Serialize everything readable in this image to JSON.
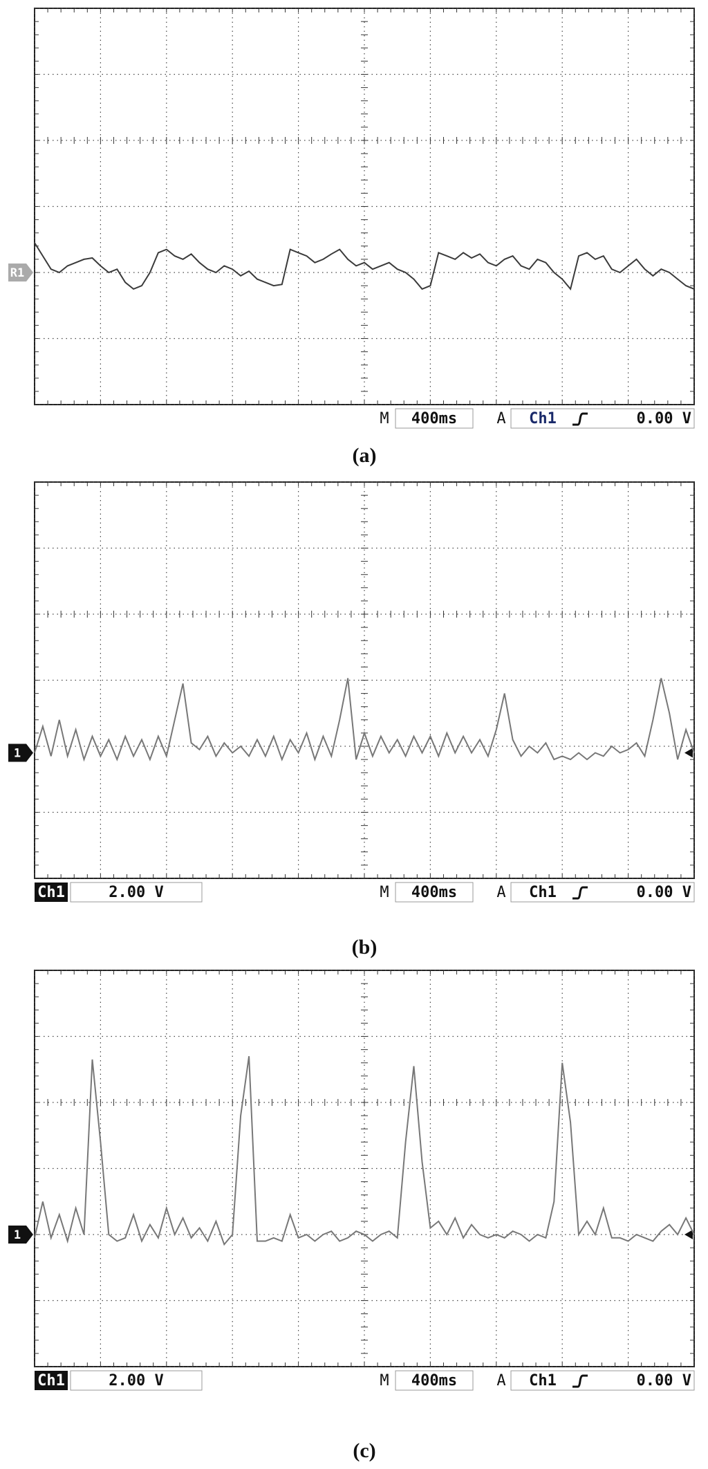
{
  "chart_data": [
    {
      "type": "line",
      "caption": "(a)",
      "marker_label": "R1",
      "reference_level": -2,
      "timebase_prefix": "M",
      "timebase": "400ms",
      "trigger_prefix": "A",
      "trigger_source": "Ch1",
      "trigger_level": "0.00 V",
      "xlim": [
        0,
        10
      ],
      "ylim": [
        -4,
        2
      ],
      "xticks": [
        0,
        1,
        2,
        3,
        4,
        5,
        6,
        7,
        8,
        9,
        10
      ],
      "yticks": [
        -4,
        -3,
        -2,
        -1,
        0,
        1,
        2
      ],
      "grid": true,
      "x": [
        0,
        0.125,
        0.25,
        0.375,
        0.5,
        0.625,
        0.75,
        0.875,
        1,
        1.125,
        1.25,
        1.375,
        1.5,
        1.625,
        1.75,
        1.875,
        2,
        2.125,
        2.25,
        2.375,
        2.5,
        2.625,
        2.75,
        2.875,
        3,
        3.125,
        3.25,
        3.375,
        3.5,
        3.625,
        3.75,
        3.875,
        4,
        4.125,
        4.25,
        4.375,
        4.5,
        4.625,
        4.75,
        4.875,
        5,
        5.125,
        5.25,
        5.375,
        5.5,
        5.625,
        5.75,
        5.875,
        6,
        6.125,
        6.25,
        6.375,
        6.5,
        6.625,
        6.75,
        6.875,
        7,
        7.125,
        7.25,
        7.375,
        7.5,
        7.625,
        7.75,
        7.875,
        8,
        8.125,
        8.25,
        8.375,
        8.5,
        8.625,
        8.75,
        8.875,
        9,
        9.125,
        9.25,
        9.375,
        9.5,
        9.625,
        9.75,
        9.875,
        10
      ],
      "series": [
        {
          "color": "#3a3a3a",
          "values": [
            -1.55,
            -1.75,
            -1.95,
            -2.0,
            -1.9,
            -1.85,
            -1.8,
            -1.78,
            -1.9,
            -2.0,
            -1.95,
            -2.15,
            -2.25,
            -2.2,
            -2.0,
            -1.7,
            -1.65,
            -1.75,
            -1.8,
            -1.72,
            -1.85,
            -1.95,
            -2.0,
            -1.9,
            -1.95,
            -2.05,
            -1.98,
            -2.1,
            -2.15,
            -2.2,
            -2.18,
            -1.65,
            -1.7,
            -1.75,
            -1.85,
            -1.8,
            -1.72,
            -1.65,
            -1.8,
            -1.9,
            -1.85,
            -1.95,
            -1.9,
            -1.85,
            -1.95,
            -2.0,
            -2.1,
            -2.25,
            -2.2,
            -1.7,
            -1.75,
            -1.8,
            -1.7,
            -1.78,
            -1.72,
            -1.85,
            -1.9,
            -1.8,
            -1.75,
            -1.9,
            -1.95,
            -1.8,
            -1.85,
            -2.0,
            -2.1,
            -2.25,
            -1.75,
            -1.7,
            -1.8,
            -1.75,
            -1.95,
            -2.0,
            -1.9,
            -1.8,
            -1.95,
            -2.05,
            -1.95,
            -2.0,
            -2.1,
            -2.2,
            -2.25
          ]
        }
      ]
    },
    {
      "type": "line",
      "caption": "(b)",
      "marker_label": "1",
      "reference_level": -2.1,
      "channel": "Ch1",
      "channel_scale": "2.00 V",
      "timebase_prefix": "M",
      "timebase": "400ms",
      "trigger_prefix": "A",
      "trigger_source": "Ch1",
      "trigger_level": "0.00 V",
      "xlim": [
        0,
        10
      ],
      "ylim": [
        -4,
        2
      ],
      "xticks": [
        0,
        1,
        2,
        3,
        4,
        5,
        6,
        7,
        8,
        9,
        10
      ],
      "yticks": [
        -4,
        -3,
        -2,
        -1,
        0,
        1,
        2
      ],
      "grid": true,
      "x": [
        0,
        0.125,
        0.25,
        0.375,
        0.5,
        0.625,
        0.75,
        0.875,
        1,
        1.125,
        1.25,
        1.375,
        1.5,
        1.625,
        1.75,
        1.875,
        2,
        2.125,
        2.25,
        2.375,
        2.5,
        2.625,
        2.75,
        2.875,
        3,
        3.125,
        3.25,
        3.375,
        3.5,
        3.625,
        3.75,
        3.875,
        4,
        4.125,
        4.25,
        4.375,
        4.5,
        4.625,
        4.75,
        4.875,
        5,
        5.125,
        5.25,
        5.375,
        5.5,
        5.625,
        5.75,
        5.875,
        6,
        6.125,
        6.25,
        6.375,
        6.5,
        6.625,
        6.75,
        6.875,
        7,
        7.125,
        7.25,
        7.375,
        7.5,
        7.625,
        7.75,
        7.875,
        8,
        8.125,
        8.25,
        8.375,
        8.5,
        8.625,
        8.75,
        8.875,
        9,
        9.125,
        9.25,
        9.375,
        9.5,
        9.625,
        9.75,
        9.875,
        10
      ],
      "series": [
        {
          "color": "#777777",
          "values": [
            -2.1,
            -1.7,
            -2.15,
            -1.6,
            -2.15,
            -1.75,
            -2.2,
            -1.85,
            -2.15,
            -1.9,
            -2.2,
            -1.85,
            -2.15,
            -1.9,
            -2.2,
            -1.85,
            -2.15,
            -1.6,
            -1.05,
            -1.95,
            -2.05,
            -1.85,
            -2.15,
            -1.95,
            -2.1,
            -2.0,
            -2.15,
            -1.9,
            -2.15,
            -1.85,
            -2.2,
            -1.9,
            -2.1,
            -1.8,
            -2.2,
            -1.85,
            -2.15,
            -1.6,
            -0.97,
            -2.2,
            -1.8,
            -2.15,
            -1.85,
            -2.1,
            -1.9,
            -2.15,
            -1.85,
            -2.1,
            -1.85,
            -2.15,
            -1.8,
            -2.1,
            -1.85,
            -2.1,
            -1.9,
            -2.15,
            -1.75,
            -1.2,
            -1.9,
            -2.15,
            -2.0,
            -2.1,
            -1.95,
            -2.2,
            -2.15,
            -2.2,
            -2.1,
            -2.2,
            -2.1,
            -2.15,
            -2.0,
            -2.1,
            -2.05,
            -1.95,
            -2.15,
            -1.6,
            -0.97,
            -1.5,
            -2.2,
            -1.75,
            -2.1
          ]
        }
      ]
    },
    {
      "type": "line",
      "caption": "(c)",
      "marker_label": "1",
      "reference_level": -2,
      "channel": "Ch1",
      "channel_scale": "2.00 V",
      "timebase_prefix": "M",
      "timebase": "400ms",
      "trigger_prefix": "A",
      "trigger_source": "Ch1",
      "trigger_level": "0.00 V",
      "xlim": [
        0,
        10
      ],
      "ylim": [
        -4,
        2
      ],
      "xticks": [
        0,
        1,
        2,
        3,
        4,
        5,
        6,
        7,
        8,
        9,
        10
      ],
      "yticks": [
        -4,
        -3,
        -2,
        -1,
        0,
        1,
        2
      ],
      "grid": true,
      "x": [
        0,
        0.125,
        0.25,
        0.375,
        0.5,
        0.625,
        0.75,
        0.875,
        1,
        1.125,
        1.25,
        1.375,
        1.5,
        1.625,
        1.75,
        1.875,
        2,
        2.125,
        2.25,
        2.375,
        2.5,
        2.625,
        2.75,
        2.875,
        3,
        3.125,
        3.25,
        3.375,
        3.5,
        3.625,
        3.75,
        3.875,
        4,
        4.125,
        4.25,
        4.375,
        4.5,
        4.625,
        4.75,
        4.875,
        5,
        5.125,
        5.25,
        5.375,
        5.5,
        5.625,
        5.75,
        5.875,
        6,
        6.125,
        6.25,
        6.375,
        6.5,
        6.625,
        6.75,
        6.875,
        7,
        7.125,
        7.25,
        7.375,
        7.5,
        7.625,
        7.75,
        7.875,
        8,
        8.125,
        8.25,
        8.375,
        8.5,
        8.625,
        8.75,
        8.875,
        9,
        9.125,
        9.25,
        9.375,
        9.5,
        9.625,
        9.75,
        9.875,
        10
      ],
      "series": [
        {
          "color": "#777777",
          "values": [
            -2.05,
            -1.5,
            -2.05,
            -1.7,
            -2.1,
            -1.6,
            -2.0,
            0.65,
            -0.6,
            -2.0,
            -2.1,
            -2.05,
            -1.7,
            -2.1,
            -1.85,
            -2.05,
            -1.6,
            -2.0,
            -1.75,
            -2.05,
            -1.9,
            -2.1,
            -1.8,
            -2.15,
            -2.0,
            -0.2,
            0.7,
            -2.1,
            -2.1,
            -2.05,
            -2.1,
            -1.7,
            -2.05,
            -2.0,
            -2.1,
            -2.0,
            -1.95,
            -2.1,
            -2.05,
            -1.95,
            -2.0,
            -2.1,
            -2.0,
            -1.95,
            -2.05,
            -0.6,
            0.55,
            -0.9,
            -1.9,
            -1.8,
            -2.0,
            -1.75,
            -2.05,
            -1.85,
            -2.0,
            -2.05,
            -2.0,
            -2.05,
            -1.95,
            -2.0,
            -2.1,
            -2.0,
            -2.05,
            -1.5,
            0.6,
            -0.3,
            -2.0,
            -1.8,
            -2.0,
            -1.6,
            -2.05,
            -2.05,
            -2.1,
            -2.0,
            -2.05,
            -2.1,
            -1.95,
            -1.85,
            -2.0,
            -1.75,
            -2.0
          ]
        }
      ]
    }
  ]
}
